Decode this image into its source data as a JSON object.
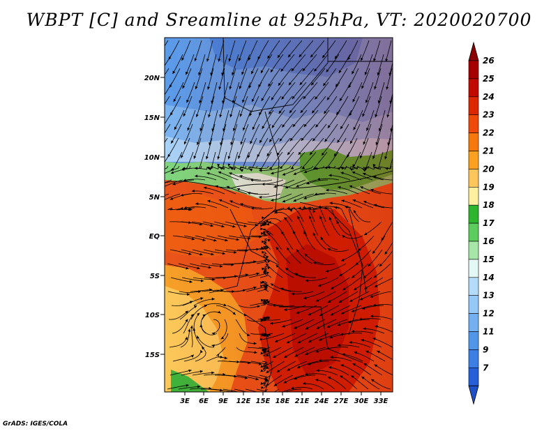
{
  "title": "WBPT [C] and Sreamline at 925hPa, VT: 2020020700",
  "credit": "GrADS: IGES/COLA",
  "map": {
    "lat_labels": [
      "20N",
      "15N",
      "10N",
      "5N",
      "EQ",
      "5S",
      "10S",
      "15S"
    ],
    "lon_labels": [
      "3E",
      "6E",
      "9E",
      "12E",
      "15E",
      "18E",
      "21E",
      "24E",
      "27E",
      "30E",
      "33E"
    ]
  },
  "colorbar": {
    "levels": [
      {
        "label": "26",
        "color": "#a50000"
      },
      {
        "label": "25",
        "color": "#c00a00"
      },
      {
        "label": "24",
        "color": "#dc2800"
      },
      {
        "label": "23",
        "color": "#ee4a08"
      },
      {
        "label": "22",
        "color": "#f7790e"
      },
      {
        "label": "21",
        "color": "#fba020"
      },
      {
        "label": "20",
        "color": "#fdc65a"
      },
      {
        "label": "19",
        "color": "#fff0a0"
      },
      {
        "label": "18",
        "color": "#2eb52e"
      },
      {
        "label": "17",
        "color": "#5ccd5c"
      },
      {
        "label": "16",
        "color": "#a6e6a6"
      },
      {
        "label": "15",
        "color": "#e4f8f6"
      },
      {
        "label": "14",
        "color": "#b4dcfa"
      },
      {
        "label": "13",
        "color": "#94c8f8"
      },
      {
        "label": "12",
        "color": "#73b0f2"
      },
      {
        "label": "11",
        "color": "#5296ea"
      },
      {
        "label": "9",
        "color": "#3c7ee4"
      },
      {
        "label": "7",
        "color": "#2660d8"
      }
    ],
    "top_arrow_color": "#8a0000",
    "bottom_arrow_color": "#1e50c8"
  }
}
